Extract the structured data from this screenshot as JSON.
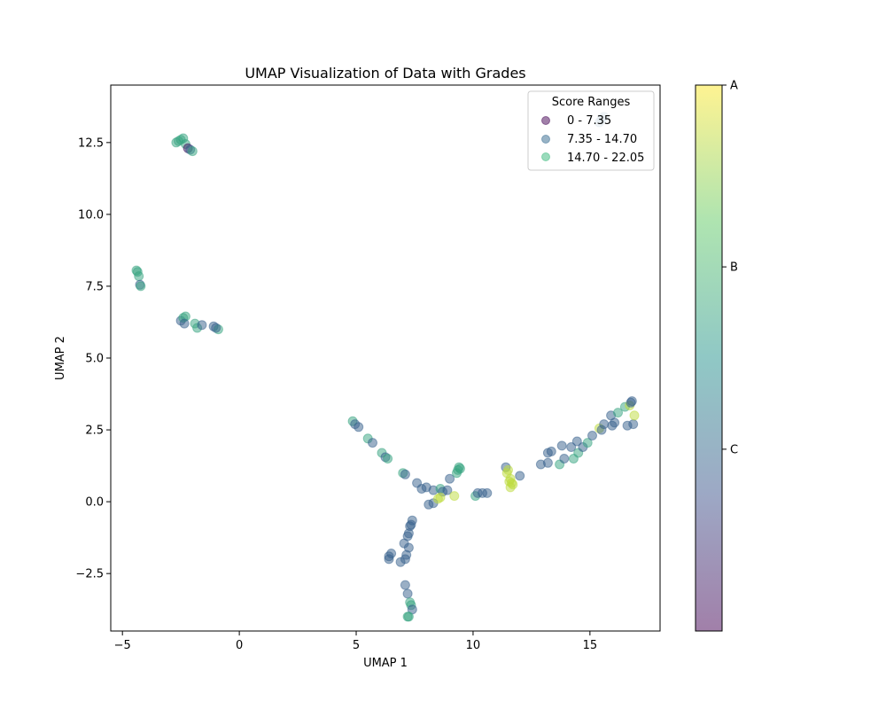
{
  "chart_data": {
    "type": "scatter",
    "title": "UMAP Visualization of Data with Grades",
    "xlabel": "UMAP 1",
    "ylabel": "UMAP 2",
    "xlim": [
      -5.5,
      18
    ],
    "ylim": [
      -4.5,
      14.5
    ],
    "x_ticks": [
      -5,
      0,
      5,
      10,
      15
    ],
    "y_ticks": [
      -2.5,
      0.0,
      2.5,
      5.0,
      7.5,
      10.0,
      12.5
    ],
    "x_tick_labels": [
      "−5",
      "0",
      "5",
      "10",
      "15"
    ],
    "y_tick_labels": [
      "−2.5",
      "0.0",
      "2.5",
      "5.0",
      "7.5",
      "10.0",
      "12.5"
    ],
    "grid": false,
    "legend": {
      "title": "Score Ranges",
      "placement": "top-right",
      "entries": [
        {
          "label": "0 - 7.35",
          "color": "#440154"
        },
        {
          "label": "7.35 - 14.70",
          "color": "#31688e"
        },
        {
          "label": "14.70 - 22.05",
          "color": "#35b779"
        }
      ]
    },
    "colorbar": {
      "colormap": "viridis",
      "ticks": [
        {
          "label": "A",
          "value": 1.0
        },
        {
          "label": "B",
          "value": 0.667
        },
        {
          "label": "C",
          "value": 0.333
        }
      ]
    },
    "points": [
      {
        "x": -2.7,
        "y": 12.5,
        "c": 0.58
      },
      {
        "x": -2.6,
        "y": 12.55,
        "c": 0.58
      },
      {
        "x": -2.5,
        "y": 12.6,
        "c": 0.58
      },
      {
        "x": -2.4,
        "y": 12.65,
        "c": 0.58
      },
      {
        "x": -2.3,
        "y": 12.45,
        "c": 0.58
      },
      {
        "x": -2.2,
        "y": 12.3,
        "c": 0.05
      },
      {
        "x": -2.1,
        "y": 12.25,
        "c": 0.32
      },
      {
        "x": -2.0,
        "y": 12.2,
        "c": 0.58
      },
      {
        "x": 15.5,
        "y": 13.3,
        "c": 0.34
      },
      {
        "x": 15.6,
        "y": 13.4,
        "c": 0.34
      },
      {
        "x": 15.4,
        "y": 13.2,
        "c": 0.34
      },
      {
        "x": -4.4,
        "y": 8.05,
        "c": 0.58
      },
      {
        "x": -4.35,
        "y": 8.0,
        "c": 0.58
      },
      {
        "x": -4.3,
        "y": 7.85,
        "c": 0.58
      },
      {
        "x": -4.25,
        "y": 7.55,
        "c": 0.3
      },
      {
        "x": -4.22,
        "y": 7.5,
        "c": 0.58
      },
      {
        "x": -2.5,
        "y": 6.3,
        "c": 0.3
      },
      {
        "x": -2.4,
        "y": 6.4,
        "c": 0.58
      },
      {
        "x": -2.3,
        "y": 6.45,
        "c": 0.58
      },
      {
        "x": -2.35,
        "y": 6.2,
        "c": 0.3
      },
      {
        "x": -1.9,
        "y": 6.2,
        "c": 0.58
      },
      {
        "x": -1.8,
        "y": 6.05,
        "c": 0.58
      },
      {
        "x": -1.6,
        "y": 6.15,
        "c": 0.3
      },
      {
        "x": -1.1,
        "y": 6.1,
        "c": 0.3
      },
      {
        "x": -0.9,
        "y": 6.0,
        "c": 0.58
      },
      {
        "x": -1.0,
        "y": 6.05,
        "c": 0.3
      },
      {
        "x": 4.85,
        "y": 2.8,
        "c": 0.58
      },
      {
        "x": 4.95,
        "y": 2.7,
        "c": 0.3
      },
      {
        "x": 5.1,
        "y": 2.6,
        "c": 0.3
      },
      {
        "x": 5.5,
        "y": 2.2,
        "c": 0.58
      },
      {
        "x": 5.7,
        "y": 2.05,
        "c": 0.3
      },
      {
        "x": 6.1,
        "y": 1.7,
        "c": 0.58
      },
      {
        "x": 6.25,
        "y": 1.55,
        "c": 0.3
      },
      {
        "x": 6.35,
        "y": 1.5,
        "c": 0.58
      },
      {
        "x": 7.0,
        "y": 1.0,
        "c": 0.58
      },
      {
        "x": 7.1,
        "y": 0.95,
        "c": 0.3
      },
      {
        "x": 7.6,
        "y": 0.65,
        "c": 0.3
      },
      {
        "x": 7.8,
        "y": 0.45,
        "c": 0.3
      },
      {
        "x": 8.0,
        "y": 0.5,
        "c": 0.3
      },
      {
        "x": 8.3,
        "y": 0.4,
        "c": 0.3
      },
      {
        "x": 8.6,
        "y": 0.45,
        "c": 0.58
      },
      {
        "x": 8.7,
        "y": 0.35,
        "c": 0.3
      },
      {
        "x": 8.9,
        "y": 0.4,
        "c": 0.3
      },
      {
        "x": 9.0,
        "y": 0.8,
        "c": 0.3
      },
      {
        "x": 8.1,
        "y": -0.1,
        "c": 0.3
      },
      {
        "x": 8.3,
        "y": -0.05,
        "c": 0.3
      },
      {
        "x": 8.5,
        "y": 0.1,
        "c": 0.9
      },
      {
        "x": 8.6,
        "y": 0.15,
        "c": 0.9
      },
      {
        "x": 9.2,
        "y": 0.2,
        "c": 0.9
      },
      {
        "x": 9.3,
        "y": 1.0,
        "c": 0.58
      },
      {
        "x": 9.35,
        "y": 1.1,
        "c": 0.58
      },
      {
        "x": 9.4,
        "y": 1.2,
        "c": 0.58
      },
      {
        "x": 9.45,
        "y": 1.15,
        "c": 0.58
      },
      {
        "x": 10.1,
        "y": 0.2,
        "c": 0.58
      },
      {
        "x": 10.2,
        "y": 0.3,
        "c": 0.3
      },
      {
        "x": 10.4,
        "y": 0.3,
        "c": 0.3
      },
      {
        "x": 10.6,
        "y": 0.3,
        "c": 0.3
      },
      {
        "x": 11.4,
        "y": 1.2,
        "c": 0.3
      },
      {
        "x": 11.5,
        "y": 1.1,
        "c": 0.9
      },
      {
        "x": 11.45,
        "y": 1.0,
        "c": 0.9
      },
      {
        "x": 11.6,
        "y": 0.8,
        "c": 0.9
      },
      {
        "x": 11.55,
        "y": 0.7,
        "c": 0.9
      },
      {
        "x": 11.7,
        "y": 0.6,
        "c": 0.9
      },
      {
        "x": 11.6,
        "y": 0.5,
        "c": 0.9
      },
      {
        "x": 11.65,
        "y": 0.65,
        "c": 0.9
      },
      {
        "x": 12.0,
        "y": 0.9,
        "c": 0.3
      },
      {
        "x": 12.9,
        "y": 1.3,
        "c": 0.3
      },
      {
        "x": 13.2,
        "y": 1.35,
        "c": 0.3
      },
      {
        "x": 13.2,
        "y": 1.7,
        "c": 0.3
      },
      {
        "x": 13.35,
        "y": 1.75,
        "c": 0.3
      },
      {
        "x": 13.7,
        "y": 1.3,
        "c": 0.58
      },
      {
        "x": 13.8,
        "y": 1.95,
        "c": 0.3
      },
      {
        "x": 13.9,
        "y": 1.5,
        "c": 0.3
      },
      {
        "x": 14.2,
        "y": 1.9,
        "c": 0.3
      },
      {
        "x": 14.3,
        "y": 1.5,
        "c": 0.58
      },
      {
        "x": 14.45,
        "y": 2.1,
        "c": 0.3
      },
      {
        "x": 14.5,
        "y": 1.7,
        "c": 0.58
      },
      {
        "x": 14.7,
        "y": 1.9,
        "c": 0.3
      },
      {
        "x": 14.9,
        "y": 2.05,
        "c": 0.58
      },
      {
        "x": 15.1,
        "y": 2.3,
        "c": 0.3
      },
      {
        "x": 15.4,
        "y": 2.55,
        "c": 0.9
      },
      {
        "x": 15.5,
        "y": 2.5,
        "c": 0.3
      },
      {
        "x": 15.6,
        "y": 2.7,
        "c": 0.3
      },
      {
        "x": 15.9,
        "y": 3.0,
        "c": 0.3
      },
      {
        "x": 15.95,
        "y": 2.65,
        "c": 0.3
      },
      {
        "x": 16.05,
        "y": 2.75,
        "c": 0.3
      },
      {
        "x": 16.2,
        "y": 3.1,
        "c": 0.58
      },
      {
        "x": 16.5,
        "y": 3.3,
        "c": 0.58
      },
      {
        "x": 16.6,
        "y": 2.65,
        "c": 0.3
      },
      {
        "x": 16.7,
        "y": 3.35,
        "c": 0.9
      },
      {
        "x": 16.75,
        "y": 3.45,
        "c": 0.3
      },
      {
        "x": 16.8,
        "y": 3.5,
        "c": 0.3
      },
      {
        "x": 16.85,
        "y": 2.7,
        "c": 0.3
      },
      {
        "x": 16.9,
        "y": 3.0,
        "c": 0.9
      },
      {
        "x": 7.4,
        "y": -0.65,
        "c": 0.3
      },
      {
        "x": 7.35,
        "y": -0.8,
        "c": 0.3
      },
      {
        "x": 7.3,
        "y": -0.85,
        "c": 0.3
      },
      {
        "x": 7.25,
        "y": -1.1,
        "c": 0.3
      },
      {
        "x": 7.2,
        "y": -1.2,
        "c": 0.3
      },
      {
        "x": 7.05,
        "y": -1.45,
        "c": 0.3
      },
      {
        "x": 7.25,
        "y": -1.6,
        "c": 0.3
      },
      {
        "x": 7.15,
        "y": -1.85,
        "c": 0.3
      },
      {
        "x": 7.1,
        "y": -2.0,
        "c": 0.3
      },
      {
        "x": 6.9,
        "y": -2.1,
        "c": 0.3
      },
      {
        "x": 6.5,
        "y": -1.8,
        "c": 0.3
      },
      {
        "x": 6.4,
        "y": -1.9,
        "c": 0.3
      },
      {
        "x": 6.4,
        "y": -2.0,
        "c": 0.3
      },
      {
        "x": 7.1,
        "y": -2.9,
        "c": 0.3
      },
      {
        "x": 7.2,
        "y": -3.2,
        "c": 0.3
      },
      {
        "x": 7.3,
        "y": -3.5,
        "c": 0.58
      },
      {
        "x": 7.35,
        "y": -3.6,
        "c": 0.58
      },
      {
        "x": 7.4,
        "y": -3.75,
        "c": 0.3
      },
      {
        "x": 7.2,
        "y": -4.0,
        "c": 0.58
      },
      {
        "x": 7.25,
        "y": -4.0,
        "c": 0.58
      }
    ]
  }
}
